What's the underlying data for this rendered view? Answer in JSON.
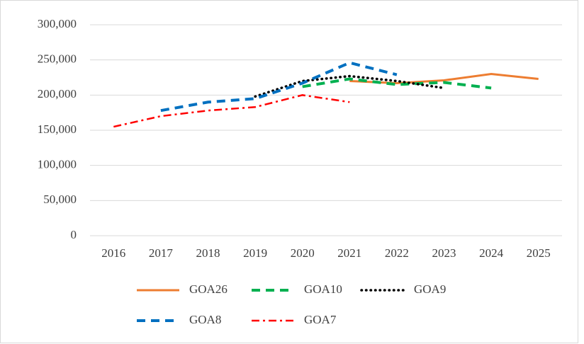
{
  "chart_data": {
    "type": "line",
    "categories": [
      "2016",
      "2017",
      "2018",
      "2019",
      "2020",
      "2021",
      "2022",
      "2023",
      "2024",
      "2025"
    ],
    "series": [
      {
        "name": "GOA26",
        "color": "#ed7d31",
        "dash": "solid",
        "values": [
          null,
          null,
          null,
          null,
          null,
          220000,
          217000,
          221000,
          230000,
          223000
        ]
      },
      {
        "name": "GOA10",
        "color": "#00b050",
        "dash": "dashed",
        "values": [
          null,
          null,
          null,
          null,
          212000,
          223000,
          215000,
          218000,
          210000,
          null
        ]
      },
      {
        "name": "GOA9",
        "color": "#000000",
        "dash": "dotted",
        "values": [
          null,
          null,
          null,
          198000,
          220000,
          227000,
          220000,
          210000,
          null,
          null
        ]
      },
      {
        "name": "GOA8",
        "color": "#0070c0",
        "dash": "dashed",
        "values": [
          null,
          178000,
          190000,
          195000,
          217000,
          246000,
          229000,
          null,
          null,
          null
        ]
      },
      {
        "name": "GOA7",
        "color": "#ff0000",
        "dash": "dashdot",
        "values": [
          155000,
          170000,
          178000,
          183000,
          200000,
          190000,
          null,
          null,
          null,
          null
        ]
      }
    ],
    "ylim": [
      0,
      300000
    ],
    "yticks": [
      0,
      {
        "value": 50000,
        "label": "50,000"
      },
      {
        "value": 100000,
        "label": "100,000"
      },
      {
        "value": 150000,
        "label": "150,000"
      },
      {
        "value": 200000,
        "label": "200,000"
      },
      {
        "value": 250000,
        "label": "250,000"
      },
      {
        "value": 300000,
        "label": "300,000"
      }
    ],
    "grid": true,
    "legend": "bottom"
  }
}
